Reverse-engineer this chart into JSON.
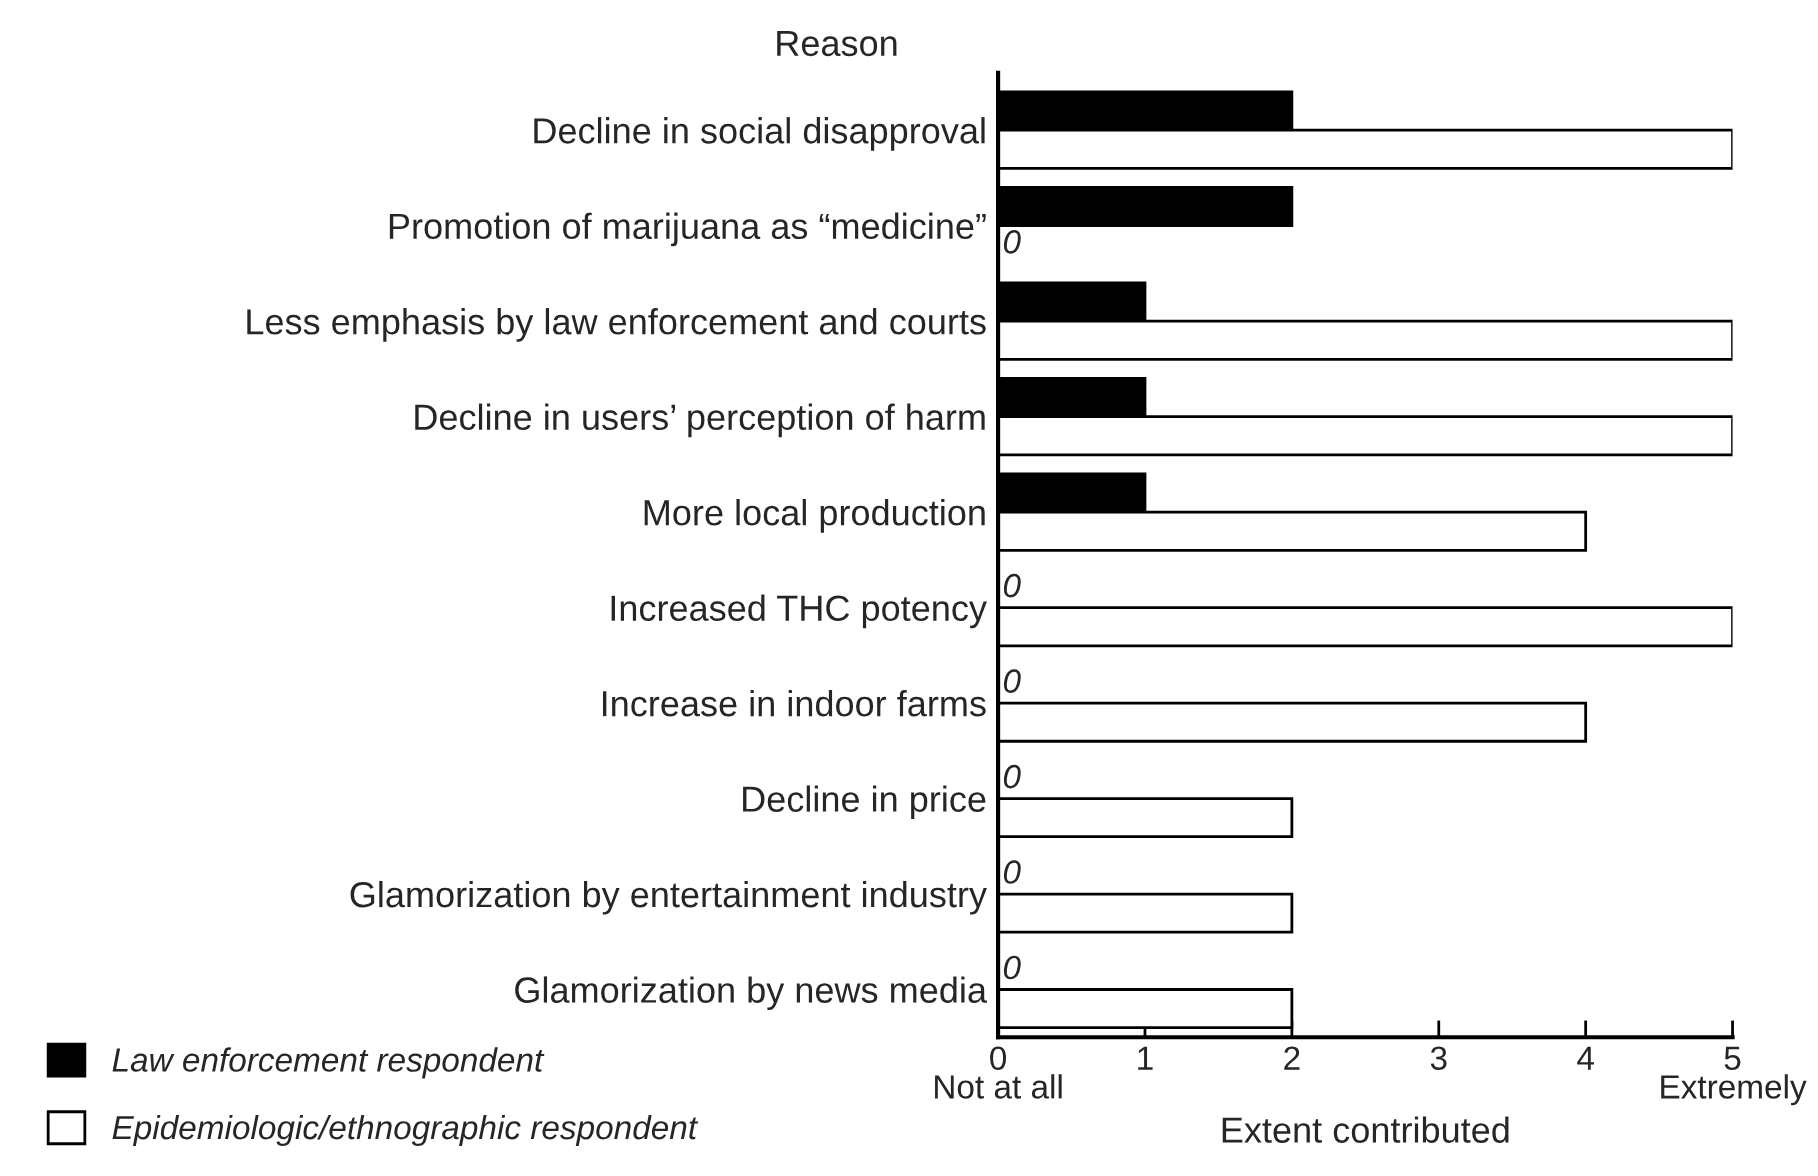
{
  "chart_data": {
    "type": "bar",
    "orientation": "horizontal",
    "ylabel": "Reason",
    "xlabel": "Extent contributed",
    "categories": [
      "Decline in social disapproval",
      "Promotion of marijuana as “medicine”",
      "Less emphasis by law enforcement and courts",
      "Decline in users’ perception of harm",
      "More local production",
      "Increased THC potency",
      "Increase in indoor farms",
      "Decline in price",
      "Glamorization by entertainment industry",
      "Glamorization by news media"
    ],
    "series": [
      {
        "name": "Law enforcement respondent",
        "color": "#000000",
        "values": [
          2,
          2,
          1,
          1,
          1,
          0,
          0,
          0,
          0,
          0
        ],
        "value_labels": [
          null,
          null,
          null,
          null,
          null,
          "0",
          "0",
          "0",
          "0",
          "0"
        ]
      },
      {
        "name": "Epidemiologic/ethnographic respondent",
        "color": "#ffffff",
        "values": [
          5,
          0,
          5,
          5,
          4,
          5,
          4,
          2,
          2,
          2
        ],
        "value_labels": [
          null,
          "0",
          null,
          null,
          null,
          null,
          null,
          null,
          null,
          null
        ]
      }
    ],
    "xlim": [
      0,
      5
    ],
    "xticks": [
      {
        "value": 0,
        "label": "0\nNot at all"
      },
      1,
      2,
      3,
      4,
      {
        "value": 5,
        "label": "5\nExtremely"
      }
    ],
    "grid": false,
    "legend": "bottom left"
  }
}
